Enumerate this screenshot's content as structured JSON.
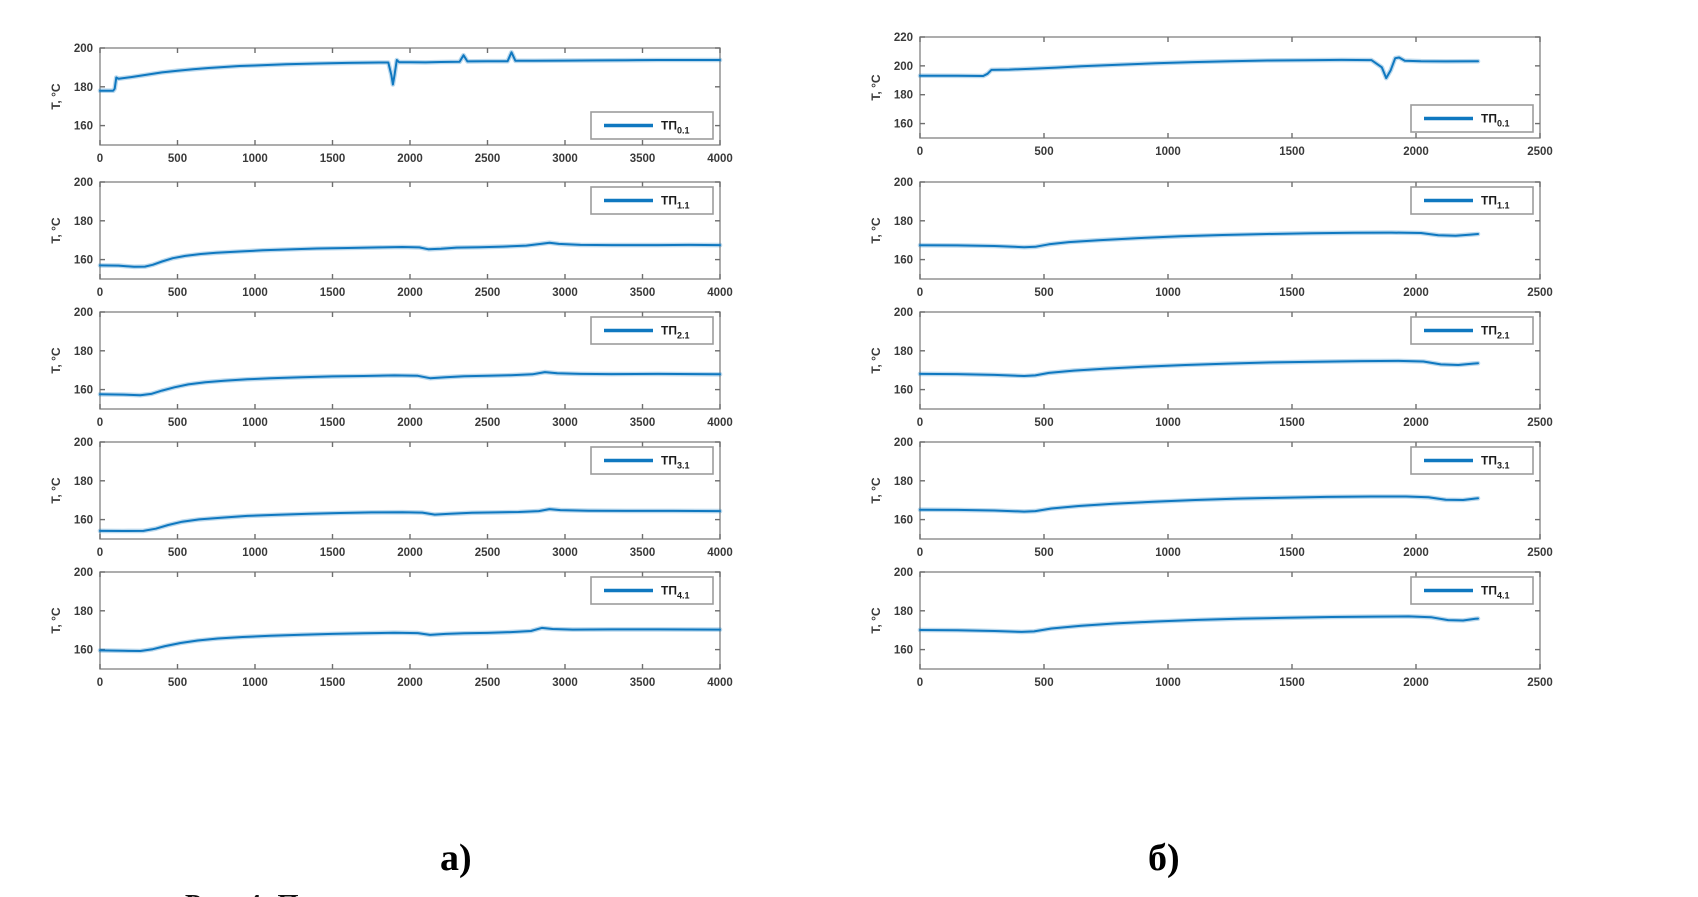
{
  "figure_labels": {
    "a": "а)",
    "b": "б)"
  },
  "caption_fragment": "Рис. 4. П",
  "style": {
    "line_color": "#0f78c0",
    "axis_color": "#8a8a8a",
    "label_color": "#3a3a3a",
    "background": "#ffffff"
  },
  "chart_data": [
    {
      "id": "a1",
      "column": "а",
      "row": 0,
      "type": "line",
      "ylabel": "T, °C",
      "legend": "ТП",
      "legend_sub": "0.1",
      "legend_pos": "br",
      "xlim": [
        0,
        4000
      ],
      "xticks": [
        0,
        500,
        1000,
        1500,
        2000,
        2500,
        3000,
        3500,
        4000
      ],
      "ylim": [
        150,
        200
      ],
      "yticks": [
        160,
        180,
        200
      ],
      "grid": false,
      "points": [
        [
          0,
          178
        ],
        [
          85,
          178
        ],
        [
          95,
          179
        ],
        [
          105,
          184.8
        ],
        [
          120,
          184.2
        ],
        [
          200,
          185
        ],
        [
          300,
          186.2
        ],
        [
          400,
          187.4
        ],
        [
          500,
          188.3
        ],
        [
          600,
          189
        ],
        [
          700,
          189.7
        ],
        [
          800,
          190.2
        ],
        [
          900,
          190.7
        ],
        [
          1000,
          191
        ],
        [
          1200,
          191.6
        ],
        [
          1400,
          192
        ],
        [
          1600,
          192.3
        ],
        [
          1800,
          192.5
        ],
        [
          1860,
          192.5
        ],
        [
          1880,
          186
        ],
        [
          1890,
          181.2
        ],
        [
          1900,
          186
        ],
        [
          1915,
          193.8
        ],
        [
          1930,
          192.7
        ],
        [
          2000,
          192.7
        ],
        [
          2100,
          192.6
        ],
        [
          2200,
          192.8
        ],
        [
          2320,
          192.9
        ],
        [
          2345,
          196.3
        ],
        [
          2370,
          193.1
        ],
        [
          2500,
          193.2
        ],
        [
          2630,
          193.2
        ],
        [
          2655,
          197.8
        ],
        [
          2680,
          193.4
        ],
        [
          2800,
          193.4
        ],
        [
          3000,
          193.5
        ],
        [
          3200,
          193.6
        ],
        [
          3400,
          193.7
        ],
        [
          3600,
          193.8
        ],
        [
          3800,
          193.8
        ],
        [
          4000,
          193.8
        ]
      ]
    },
    {
      "id": "a2",
      "column": "а",
      "row": 1,
      "type": "line",
      "ylabel": "T, °C",
      "legend": "ТП",
      "legend_sub": "1.1",
      "legend_pos": "tr",
      "xlim": [
        0,
        4000
      ],
      "xticks": [
        0,
        500,
        1000,
        1500,
        2000,
        2500,
        3000,
        3500,
        4000
      ],
      "ylim": [
        150,
        200
      ],
      "yticks": [
        160,
        180,
        200
      ],
      "grid": false,
      "points": [
        [
          0,
          157
        ],
        [
          120,
          156.9
        ],
        [
          220,
          156.3
        ],
        [
          290,
          156.4
        ],
        [
          340,
          157.3
        ],
        [
          400,
          159
        ],
        [
          470,
          160.7
        ],
        [
          550,
          161.9
        ],
        [
          650,
          162.9
        ],
        [
          750,
          163.5
        ],
        [
          900,
          164.2
        ],
        [
          1050,
          164.8
        ],
        [
          1200,
          165.2
        ],
        [
          1400,
          165.7
        ],
        [
          1600,
          166
        ],
        [
          1800,
          166.3
        ],
        [
          1950,
          166.5
        ],
        [
          2060,
          166.3
        ],
        [
          2120,
          165.3
        ],
        [
          2200,
          165.6
        ],
        [
          2300,
          166.2
        ],
        [
          2450,
          166.4
        ],
        [
          2600,
          166.7
        ],
        [
          2750,
          167.2
        ],
        [
          2850,
          168.2
        ],
        [
          2900,
          168.7
        ],
        [
          2960,
          168.1
        ],
        [
          3100,
          167.6
        ],
        [
          3300,
          167.5
        ],
        [
          3600,
          167.5
        ],
        [
          3800,
          167.6
        ],
        [
          4000,
          167.5
        ]
      ]
    },
    {
      "id": "a3",
      "column": "а",
      "row": 2,
      "type": "line",
      "ylabel": "T, °C",
      "legend": "ТП",
      "legend_sub": "2.1",
      "legend_pos": "tr",
      "xlim": [
        0,
        4000
      ],
      "xticks": [
        0,
        500,
        1000,
        1500,
        2000,
        2500,
        3000,
        3500,
        4000
      ],
      "ylim": [
        150,
        200
      ],
      "yticks": [
        160,
        180,
        200
      ],
      "grid": false,
      "points": [
        [
          0,
          157.6
        ],
        [
          150,
          157.4
        ],
        [
          260,
          157.1
        ],
        [
          330,
          157.8
        ],
        [
          400,
          159.5
        ],
        [
          480,
          161.2
        ],
        [
          570,
          162.7
        ],
        [
          680,
          163.8
        ],
        [
          800,
          164.6
        ],
        [
          950,
          165.3
        ],
        [
          1100,
          165.8
        ],
        [
          1300,
          166.4
        ],
        [
          1500,
          166.8
        ],
        [
          1700,
          167
        ],
        [
          1900,
          167.3
        ],
        [
          2050,
          167.1
        ],
        [
          2130,
          165.9
        ],
        [
          2230,
          166.4
        ],
        [
          2350,
          166.9
        ],
        [
          2500,
          167.1
        ],
        [
          2650,
          167.4
        ],
        [
          2790,
          167.9
        ],
        [
          2870,
          169
        ],
        [
          2950,
          168.4
        ],
        [
          3100,
          168.1
        ],
        [
          3300,
          168
        ],
        [
          3600,
          168.1
        ],
        [
          4000,
          167.9
        ]
      ]
    },
    {
      "id": "a4",
      "column": "а",
      "row": 3,
      "type": "line",
      "ylabel": "T, °C",
      "legend": "ТП",
      "legend_sub": "3.1",
      "legend_pos": "tr",
      "xlim": [
        0,
        4000
      ],
      "xticks": [
        0,
        500,
        1000,
        1500,
        2000,
        2500,
        3000,
        3500,
        4000
      ],
      "ylim": [
        150,
        200
      ],
      "yticks": [
        160,
        180,
        200
      ],
      "grid": false,
      "points": [
        [
          0,
          154.2
        ],
        [
          150,
          154.1
        ],
        [
          280,
          154.2
        ],
        [
          360,
          155.3
        ],
        [
          440,
          157.2
        ],
        [
          530,
          158.9
        ],
        [
          640,
          160.1
        ],
        [
          780,
          161
        ],
        [
          950,
          161.9
        ],
        [
          1150,
          162.5
        ],
        [
          1350,
          163
        ],
        [
          1550,
          163.4
        ],
        [
          1750,
          163.7
        ],
        [
          1950,
          163.8
        ],
        [
          2080,
          163.6
        ],
        [
          2160,
          162.6
        ],
        [
          2260,
          163
        ],
        [
          2400,
          163.5
        ],
        [
          2550,
          163.7
        ],
        [
          2700,
          163.9
        ],
        [
          2830,
          164.4
        ],
        [
          2900,
          165.4
        ],
        [
          2970,
          164.9
        ],
        [
          3150,
          164.6
        ],
        [
          3400,
          164.5
        ],
        [
          3700,
          164.5
        ],
        [
          4000,
          164.4
        ]
      ]
    },
    {
      "id": "a5",
      "column": "а",
      "row": 4,
      "type": "line",
      "ylabel": "T, °C",
      "legend": "ТП",
      "legend_sub": "4.1",
      "legend_pos": "tr",
      "xlim": [
        0,
        4000
      ],
      "xticks": [
        0,
        500,
        1000,
        1500,
        2000,
        2500,
        3000,
        3500,
        4000
      ],
      "ylim": [
        150,
        200
      ],
      "yticks": [
        160,
        180,
        200
      ],
      "grid": false,
      "points": [
        [
          0,
          159.6
        ],
        [
          150,
          159.4
        ],
        [
          260,
          159.3
        ],
        [
          340,
          160.2
        ],
        [
          420,
          161.8
        ],
        [
          520,
          163.4
        ],
        [
          630,
          164.7
        ],
        [
          760,
          165.7
        ],
        [
          920,
          166.5
        ],
        [
          1100,
          167.1
        ],
        [
          1300,
          167.7
        ],
        [
          1500,
          168.1
        ],
        [
          1700,
          168.4
        ],
        [
          1900,
          168.7
        ],
        [
          2050,
          168.5
        ],
        [
          2130,
          167.6
        ],
        [
          2230,
          168.1
        ],
        [
          2350,
          168.4
        ],
        [
          2500,
          168.6
        ],
        [
          2650,
          169
        ],
        [
          2780,
          169.6
        ],
        [
          2850,
          171.2
        ],
        [
          2920,
          170.6
        ],
        [
          3050,
          170.3
        ],
        [
          3300,
          170.4
        ],
        [
          3600,
          170.4
        ],
        [
          4000,
          170.3
        ]
      ]
    },
    {
      "id": "b1",
      "column": "б",
      "row": 0,
      "type": "line",
      "ylabel": "T, °C",
      "legend": "ТП",
      "legend_sub": "0.1",
      "legend_pos": "br",
      "xlim": [
        0,
        2500
      ],
      "xticks": [
        0,
        500,
        1000,
        1500,
        2000,
        2500
      ],
      "ylim": [
        150,
        220
      ],
      "yticks": [
        160,
        180,
        200,
        220
      ],
      "grid": false,
      "points": [
        [
          0,
          193.2
        ],
        [
          150,
          193.1
        ],
        [
          255,
          193
        ],
        [
          272,
          194.5
        ],
        [
          288,
          197.2
        ],
        [
          360,
          197.4
        ],
        [
          450,
          198
        ],
        [
          550,
          198.8
        ],
        [
          650,
          199.7
        ],
        [
          800,
          200.8
        ],
        [
          950,
          201.8
        ],
        [
          1100,
          202.6
        ],
        [
          1250,
          203.2
        ],
        [
          1400,
          203.7
        ],
        [
          1550,
          203.9
        ],
        [
          1700,
          204.1
        ],
        [
          1820,
          204
        ],
        [
          1862,
          199
        ],
        [
          1880,
          191.5
        ],
        [
          1898,
          197
        ],
        [
          1916,
          205.3
        ],
        [
          1932,
          205.8
        ],
        [
          1955,
          203.6
        ],
        [
          2020,
          203.2
        ],
        [
          2120,
          203.1
        ],
        [
          2250,
          203.2
        ]
      ]
    },
    {
      "id": "b2",
      "column": "б",
      "row": 1,
      "type": "line",
      "ylabel": "T, °C",
      "legend": "ТП",
      "legend_sub": "1.1",
      "legend_pos": "tr",
      "xlim": [
        0,
        2500
      ],
      "xticks": [
        0,
        500,
        1000,
        1500,
        2000,
        2500
      ],
      "ylim": [
        150,
        200
      ],
      "yticks": [
        160,
        180,
        200
      ],
      "grid": false,
      "points": [
        [
          0,
          167.4
        ],
        [
          150,
          167.3
        ],
        [
          300,
          167
        ],
        [
          420,
          166.4
        ],
        [
          465,
          166.6
        ],
        [
          520,
          167.9
        ],
        [
          600,
          169
        ],
        [
          720,
          170
        ],
        [
          880,
          171.1
        ],
        [
          1050,
          172
        ],
        [
          1220,
          172.7
        ],
        [
          1400,
          173.2
        ],
        [
          1580,
          173.6
        ],
        [
          1750,
          173.8
        ],
        [
          1900,
          173.9
        ],
        [
          2020,
          173.7
        ],
        [
          2090,
          172.6
        ],
        [
          2160,
          172.3
        ],
        [
          2220,
          172.9
        ],
        [
          2250,
          173.2
        ]
      ]
    },
    {
      "id": "b3",
      "column": "б",
      "row": 2,
      "type": "line",
      "ylabel": "T, °C",
      "legend": "ТП",
      "legend_sub": "2.1",
      "legend_pos": "tr",
      "xlim": [
        0,
        2500
      ],
      "xticks": [
        0,
        500,
        1000,
        1500,
        2000,
        2500
      ],
      "ylim": [
        150,
        200
      ],
      "yticks": [
        160,
        180,
        200
      ],
      "grid": false,
      "points": [
        [
          0,
          168.1
        ],
        [
          150,
          168
        ],
        [
          300,
          167.6
        ],
        [
          420,
          167
        ],
        [
          465,
          167.3
        ],
        [
          520,
          168.6
        ],
        [
          620,
          169.8
        ],
        [
          750,
          170.8
        ],
        [
          900,
          171.8
        ],
        [
          1070,
          172.7
        ],
        [
          1240,
          173.4
        ],
        [
          1420,
          174
        ],
        [
          1600,
          174.4
        ],
        [
          1780,
          174.7
        ],
        [
          1930,
          174.8
        ],
        [
          2030,
          174.5
        ],
        [
          2100,
          173
        ],
        [
          2170,
          172.7
        ],
        [
          2230,
          173.4
        ],
        [
          2250,
          173.6
        ]
      ]
    },
    {
      "id": "b4",
      "column": "б",
      "row": 3,
      "type": "line",
      "ylabel": "T, °C",
      "legend": "ТП",
      "legend_sub": "3.1",
      "legend_pos": "tr",
      "xlim": [
        0,
        2500
      ],
      "xticks": [
        0,
        500,
        1000,
        1500,
        2000,
        2500
      ],
      "ylim": [
        150,
        200
      ],
      "yticks": [
        160,
        180,
        200
      ],
      "grid": false,
      "points": [
        [
          0,
          165.1
        ],
        [
          150,
          165
        ],
        [
          300,
          164.7
        ],
        [
          420,
          164.1
        ],
        [
          465,
          164.4
        ],
        [
          530,
          165.7
        ],
        [
          640,
          167
        ],
        [
          780,
          168.2
        ],
        [
          940,
          169.2
        ],
        [
          1110,
          170.1
        ],
        [
          1280,
          170.8
        ],
        [
          1460,
          171.3
        ],
        [
          1640,
          171.7
        ],
        [
          1820,
          171.9
        ],
        [
          1960,
          171.9
        ],
        [
          2050,
          171.5
        ],
        [
          2120,
          170.2
        ],
        [
          2190,
          170.1
        ],
        [
          2240,
          170.9
        ],
        [
          2250,
          171
        ]
      ]
    },
    {
      "id": "b5",
      "column": "б",
      "row": 4,
      "type": "line",
      "ylabel": "T, °C",
      "legend": "ТП",
      "legend_sub": "4.1",
      "legend_pos": "tr",
      "xlim": [
        0,
        2500
      ],
      "xticks": [
        0,
        500,
        1000,
        1500,
        2000,
        2500
      ],
      "ylim": [
        150,
        200
      ],
      "yticks": [
        160,
        180,
        200
      ],
      "grid": false,
      "points": [
        [
          0,
          170.1
        ],
        [
          150,
          170
        ],
        [
          300,
          169.6
        ],
        [
          410,
          169.1
        ],
        [
          460,
          169.4
        ],
        [
          530,
          170.9
        ],
        [
          650,
          172.3
        ],
        [
          790,
          173.5
        ],
        [
          950,
          174.5
        ],
        [
          1120,
          175.3
        ],
        [
          1300,
          176
        ],
        [
          1480,
          176.4
        ],
        [
          1660,
          176.8
        ],
        [
          1840,
          177
        ],
        [
          1970,
          177.1
        ],
        [
          2060,
          176.7
        ],
        [
          2130,
          175.2
        ],
        [
          2190,
          175
        ],
        [
          2240,
          175.9
        ],
        [
          2250,
          176
        ]
      ]
    }
  ]
}
